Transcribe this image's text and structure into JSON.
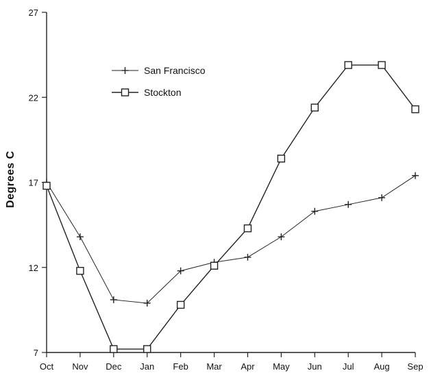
{
  "chart_data": {
    "type": "line",
    "title": "",
    "xlabel": "",
    "ylabel": "Degrees C",
    "categories": [
      "Oct",
      "Nov",
      "Dec",
      "Jan",
      "Feb",
      "Mar",
      "Apr",
      "May",
      "Jun",
      "Jul",
      "Aug",
      "Sep"
    ],
    "yticks": [
      7,
      12,
      17,
      22,
      27
    ],
    "ylim": [
      7,
      27
    ],
    "grid": false,
    "legend_position": "top-left",
    "series": [
      {
        "name": "San Francisco",
        "marker": "plus",
        "values": [
          17.0,
          13.8,
          10.1,
          9.9,
          11.8,
          12.3,
          12.6,
          13.8,
          15.3,
          15.7,
          16.1,
          17.4
        ]
      },
      {
        "name": "Stockton",
        "marker": "square",
        "values": [
          16.8,
          11.8,
          7.2,
          7.2,
          9.8,
          12.1,
          14.3,
          18.4,
          21.4,
          23.9,
          23.9,
          21.3
        ]
      }
    ]
  }
}
